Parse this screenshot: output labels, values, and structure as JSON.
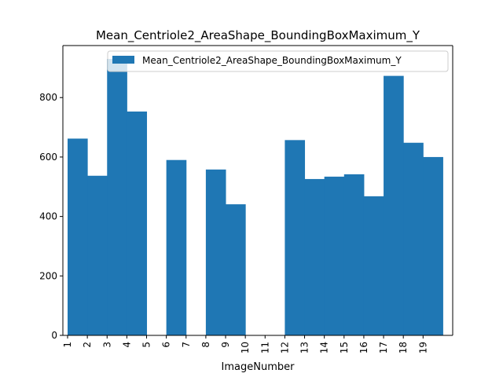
{
  "chart_data": {
    "type": "bar",
    "title": "Mean_Centriole2_AreaShape_BoundingBoxMaximum_Y",
    "xlabel": "ImageNumber",
    "ylabel": "",
    "categories": [
      "1",
      "2",
      "3",
      "4",
      "5",
      "6",
      "7",
      "8",
      "9",
      "10",
      "11",
      "12",
      "13",
      "14",
      "15",
      "16",
      "17",
      "18",
      "19"
    ],
    "ylim": [
      0,
      975
    ],
    "yticks": [
      0,
      200,
      400,
      600,
      800
    ],
    "grid": false,
    "legend_position": "top-right",
    "bar_color": "#1f77b4",
    "series": [
      {
        "name": "Mean_Centriole2_AreaShape_BoundingBoxMaximum_Y",
        "x": [
          1,
          2,
          3,
          4,
          6,
          8,
          9,
          12,
          13,
          14,
          15,
          16,
          17,
          18,
          19
        ],
        "values": [
          662,
          537,
          930,
          753,
          590,
          558,
          441,
          657,
          526,
          534,
          542,
          468,
          873,
          648,
          600
        ]
      }
    ]
  }
}
